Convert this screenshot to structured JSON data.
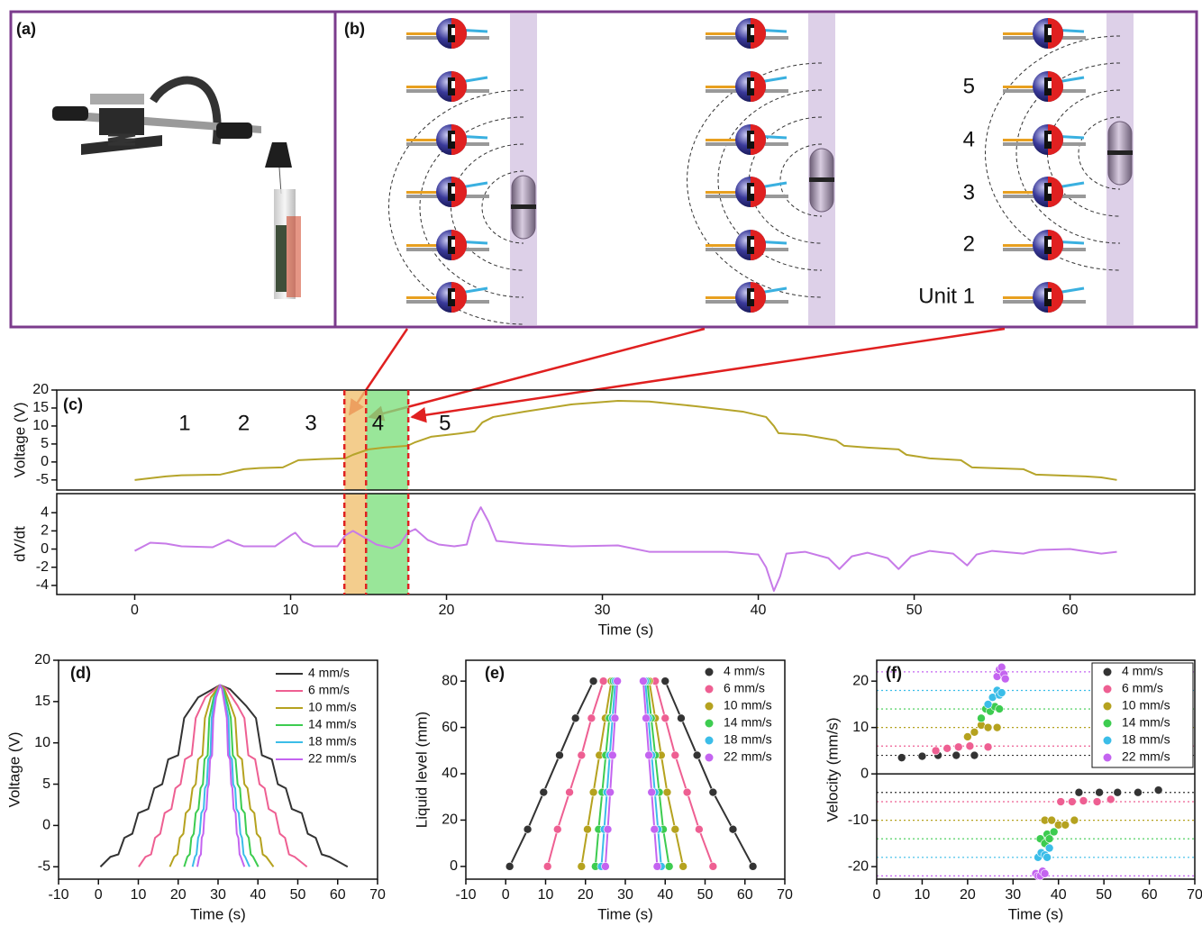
{
  "panels": {
    "a": {
      "label": "(a)"
    },
    "b": {
      "label": "(b)",
      "units": [
        "Unit 1",
        "2",
        "3",
        "4",
        "5"
      ]
    }
  },
  "chart_data": [
    {
      "type": "line",
      "label": "(c)",
      "ylabel": "Voltage (V)",
      "color": "#b5a42a",
      "xlim": [
        -5,
        68
      ],
      "ylim": [
        -7.8,
        20
      ],
      "yticks": [
        -5,
        0,
        5,
        10,
        15,
        20
      ],
      "x": [
        0,
        1,
        2,
        3,
        5.5,
        6,
        7,
        8,
        9.5,
        10,
        10.5,
        12,
        13.5,
        14,
        15,
        16,
        17.5,
        18,
        19,
        21,
        21.8,
        22.3,
        23,
        25,
        28,
        31,
        33,
        36,
        39,
        40.5,
        41,
        41.3,
        43,
        45,
        45.5,
        47,
        49,
        49.5,
        51,
        53,
        53.7,
        57,
        57.8,
        61,
        62,
        63
      ],
      "values": [
        -5,
        -4.5,
        -4,
        -3.7,
        -3.5,
        -3,
        -2,
        -1.7,
        -1.5,
        -0.5,
        0.5,
        0.8,
        1,
        2,
        3.5,
        4,
        4.5,
        5.5,
        7,
        8,
        8.5,
        11,
        12.5,
        14,
        16,
        17,
        16.8,
        15.5,
        14,
        12.5,
        10,
        8,
        7.5,
        6,
        4.5,
        4,
        3.5,
        2,
        1,
        0.5,
        -1.5,
        -2,
        -3.5,
        -4,
        -4.3,
        -5
      ],
      "highlights": [
        {
          "from": 13.45,
          "to": 14.84,
          "color": "#f0c070"
        },
        {
          "from": 14.84,
          "to": 17.55,
          "color": "#7fe07f"
        }
      ],
      "boundaries": [
        13.45,
        14.84,
        17.55
      ],
      "annotations": [
        {
          "text": "1",
          "x": 3.2,
          "y": 10.5
        },
        {
          "text": "2",
          "x": 7.0,
          "y": 10.5
        },
        {
          "text": "3",
          "x": 11.3,
          "y": 10.5
        },
        {
          "text": "4",
          "x": 15.6,
          "y": 10.5
        },
        {
          "text": "5",
          "x": 19.9,
          "y": 10.5
        }
      ]
    },
    {
      "type": "line",
      "ylabel": "dV/dt",
      "xlabel": "Time (s)",
      "color": "#c77be8",
      "xlim": [
        -5,
        68
      ],
      "xticks": [
        0,
        10,
        20,
        30,
        40,
        50,
        60
      ],
      "ylim": [
        -5,
        6.1
      ],
      "yticks": [
        -4,
        -2,
        0,
        2,
        4
      ],
      "x": [
        0,
        1,
        2,
        3,
        5,
        5.5,
        6,
        6.5,
        7,
        9,
        10,
        10.3,
        10.8,
        11.5,
        13,
        13.5,
        14,
        14.5,
        15.5,
        16.5,
        17,
        17.5,
        18,
        18.8,
        19.5,
        20.5,
        21.3,
        21.7,
        22.2,
        22.7,
        23.2,
        25,
        28,
        31,
        33,
        38,
        40,
        40.5,
        41,
        41.4,
        41.8,
        43,
        44.5,
        45.2,
        46,
        47,
        48.3,
        49,
        49.8,
        51,
        52.5,
        53.4,
        54,
        55,
        57,
        58,
        60,
        62,
        63
      ],
      "values": [
        -0.2,
        0.7,
        0.6,
        0.3,
        0.2,
        0.6,
        1,
        0.6,
        0.3,
        0.3,
        1.5,
        1.8,
        0.8,
        0.3,
        0.3,
        1.5,
        2,
        1.5,
        0.5,
        0.1,
        0.5,
        1.8,
        2.2,
        1,
        0.5,
        0.3,
        0.5,
        3,
        4.6,
        3,
        0.9,
        0.6,
        0.3,
        0.4,
        -0.3,
        -0.3,
        -0.6,
        -2,
        -4.6,
        -3,
        -0.5,
        -0.3,
        -1,
        -2.2,
        -0.8,
        -0.4,
        -1,
        -2.2,
        -0.8,
        -0.2,
        -0.5,
        -1.8,
        -0.6,
        -0.2,
        -0.5,
        -0.1,
        0,
        -0.5,
        -0.3
      ],
      "highlights": [
        {
          "from": 13.45,
          "to": 14.84,
          "color": "#f0c070"
        },
        {
          "from": 14.84,
          "to": 17.55,
          "color": "#7fe07f"
        }
      ],
      "boundaries": [
        13.45,
        14.84,
        17.55
      ]
    },
    {
      "type": "line",
      "label": "(d)",
      "xlabel": "Time (s)",
      "ylabel": "Voltage (V)",
      "legend": "upper right",
      "xlim": [
        -10,
        70
      ],
      "xticks": [
        -10,
        0,
        10,
        20,
        30,
        40,
        50,
        60,
        70
      ],
      "ylim": [
        -6.5,
        20
      ],
      "yticks": [
        -5,
        0,
        5,
        10,
        15,
        20
      ],
      "series": [
        {
          "name": "4 mm/s",
          "color": "#333333",
          "x": [
            0.5,
            3,
            5,
            6.5,
            8.5,
            10,
            12.5,
            14,
            16,
            17.5,
            20,
            21.5,
            25,
            30.5,
            33,
            37,
            39.5,
            41,
            43.5,
            45,
            47,
            48.5,
            51,
            52.5,
            54.5,
            56,
            58,
            62.5
          ],
          "values": [
            -5,
            -3.8,
            -3.5,
            -1.5,
            -1,
            1.5,
            2,
            4.5,
            5,
            8,
            8.5,
            13,
            15.5,
            17,
            16.5,
            14.5,
            13,
            8.5,
            8,
            5,
            4.5,
            2,
            1.5,
            -1,
            -1.5,
            -3.5,
            -3.8,
            -5
          ]
        },
        {
          "name": "6 mm/s",
          "color": "#ee5f92",
          "x": [
            10.1,
            11.8,
            13.2,
            14.2,
            15.5,
            16.6,
            18.3,
            19.3,
            20.6,
            21.7,
            23.4,
            24.4,
            26.8,
            30.5,
            32.2,
            34.9,
            36.6,
            37.6,
            39.3,
            40.4,
            41.7,
            42.7,
            44.4,
            45.5,
            46.8,
            47.8,
            49.2,
            52.3
          ],
          "values": [
            -5,
            -3.8,
            -3.5,
            -1.5,
            -1,
            1.5,
            2,
            4.5,
            5,
            8,
            8.5,
            13,
            15.5,
            17,
            16.5,
            14.5,
            13,
            8.5,
            8,
            5,
            4.5,
            2,
            1.5,
            -1,
            -1.5,
            -3.5,
            -3.8,
            -5
          ]
        },
        {
          "name": "10 mm/s",
          "color": "#b5a21f",
          "x": [
            17.9,
            19.0,
            19.8,
            20.4,
            21.3,
            21.9,
            22.9,
            23.6,
            24.4,
            25.0,
            26.1,
            26.7,
            28.2,
            30.5,
            31.6,
            33.2,
            34.3,
            34.9,
            36.0,
            36.6,
            37.4,
            38.1,
            39.1,
            39.7,
            40.6,
            41.2,
            42.1,
            43.9
          ],
          "values": [
            -5,
            -3.8,
            -3.5,
            -1.5,
            -1,
            1.5,
            2,
            4.5,
            5,
            8,
            8.5,
            13,
            15.5,
            17,
            16.5,
            14.5,
            13,
            8.5,
            8,
            5,
            4.5,
            2,
            1.5,
            -1,
            -1.5,
            -3.5,
            -3.8,
            -5
          ]
        },
        {
          "name": "14 mm/s",
          "color": "#3dcc50",
          "x": [
            21.5,
            22.3,
            22.9,
            23.3,
            23.9,
            24.4,
            25.1,
            25.6,
            26.2,
            26.6,
            27.4,
            27.8,
            28.9,
            30.5,
            31.3,
            32.5,
            33.2,
            33.7,
            34.4,
            34.9,
            35.5,
            35.9,
            36.7,
            37.1,
            37.7,
            38.2,
            38.8,
            40.1
          ],
          "values": [
            -5,
            -3.8,
            -3.5,
            -1.5,
            -1,
            1.5,
            2,
            4.5,
            5,
            8,
            8.5,
            13,
            15.5,
            17,
            16.5,
            14.5,
            13,
            8.5,
            8,
            5,
            4.5,
            2,
            1.5,
            -1,
            -1.5,
            -3.5,
            -3.8,
            -5
          ]
        },
        {
          "name": "18 mm/s",
          "color": "#3bbde8",
          "x": [
            23.6,
            24.2,
            24.6,
            25.0,
            25.4,
            25.8,
            26.4,
            26.7,
            27.2,
            27.5,
            28.1,
            28.4,
            29.2,
            30.5,
            31.1,
            32.0,
            32.6,
            32.9,
            33.5,
            33.8,
            34.3,
            34.6,
            35.2,
            35.6,
            36.0,
            36.4,
            36.8,
            37.9
          ],
          "values": [
            -5,
            -3.8,
            -3.5,
            -1.5,
            -1,
            1.5,
            2,
            4.5,
            5,
            8,
            8.5,
            13,
            15.5,
            17,
            16.5,
            14.5,
            13,
            8.5,
            8,
            5,
            4.5,
            2,
            1.5,
            -1,
            -1.5,
            -3.5,
            -3.8,
            -5
          ]
        },
        {
          "name": "22 mm/s",
          "color": "#c464f0",
          "x": [
            24.8,
            25.3,
            25.7,
            25.9,
            26.3,
            26.6,
            27.1,
            27.4,
            27.7,
            28.0,
            28.5,
            28.8,
            29.5,
            30.5,
            31.0,
            31.7,
            32.2,
            32.5,
            33.0,
            33.3,
            33.6,
            33.9,
            34.4,
            34.7,
            35.1,
            35.4,
            35.7,
            36.6
          ],
          "values": [
            -5,
            -3.8,
            -3.5,
            -1.5,
            -1,
            1.5,
            2,
            4.5,
            5,
            8,
            8.5,
            13,
            15.5,
            17,
            16.5,
            14.5,
            13,
            8.5,
            8,
            5,
            4.5,
            2,
            1.5,
            -1,
            -1.5,
            -3.5,
            -3.8,
            -5
          ]
        }
      ]
    },
    {
      "type": "line",
      "show_markers": true,
      "label": "(e)",
      "xlabel": "Time (s)",
      "ylabel": "Liquid level (mm)",
      "legend": "upper right",
      "xlim": [
        -10,
        70
      ],
      "xticks": [
        -10,
        0,
        10,
        20,
        30,
        40,
        50,
        60,
        70
      ],
      "ylim": [
        -5.5,
        89
      ],
      "yticks": [
        0,
        20,
        40,
        60,
        80
      ],
      "series": [
        {
          "name": "4 mm/s",
          "color": "#333333",
          "x": [
            1,
            5.5,
            9.5,
            13.5,
            17.5,
            22,
            null,
            40,
            44,
            48,
            52,
            57,
            62
          ],
          "values": [
            0,
            16,
            32,
            48,
            64,
            80,
            null,
            80,
            64,
            48,
            32,
            16,
            0
          ]
        },
        {
          "name": "6 mm/s",
          "color": "#ee5f92",
          "x": [
            10.5,
            13,
            16,
            19,
            21.5,
            24.5,
            null,
            37.5,
            40,
            42.5,
            45.5,
            48.5,
            52
          ],
          "values": [
            0,
            16,
            32,
            48,
            64,
            80,
            null,
            80,
            64,
            48,
            32,
            16,
            0
          ]
        },
        {
          "name": "10 mm/s",
          "color": "#b5a21f",
          "x": [
            19,
            20.5,
            22,
            23.5,
            25,
            26.5,
            null,
            36,
            37.5,
            39,
            40.5,
            42.5,
            44.5
          ],
          "values": [
            0,
            16,
            32,
            48,
            64,
            80,
            null,
            80,
            64,
            48,
            32,
            16,
            0
          ]
        },
        {
          "name": "14 mm/s",
          "color": "#3dcc50",
          "x": [
            22.5,
            23.3,
            24.2,
            25.1,
            26,
            27,
            null,
            35.5,
            36.5,
            37.5,
            38.5,
            39.5,
            41
          ],
          "values": [
            0,
            16,
            32,
            48,
            64,
            80,
            null,
            80,
            64,
            48,
            32,
            16,
            0
          ]
        },
        {
          "name": "18 mm/s",
          "color": "#3bbde8",
          "x": [
            24,
            24.7,
            25.4,
            26.1,
            26.8,
            27.5,
            null,
            35,
            35.8,
            36.6,
            37.4,
            38.2,
            39
          ],
          "values": [
            0,
            16,
            32,
            48,
            64,
            80,
            null,
            80,
            64,
            48,
            32,
            16,
            0
          ]
        },
        {
          "name": "22 mm/s",
          "color": "#c464f0",
          "x": [
            25,
            25.6,
            26.2,
            26.8,
            27.4,
            28,
            null,
            34.5,
            35.2,
            35.9,
            36.6,
            37.3,
            38
          ],
          "values": [
            0,
            16,
            32,
            48,
            64,
            80,
            null,
            80,
            64,
            48,
            32,
            16,
            0
          ]
        }
      ]
    },
    {
      "type": "scatter",
      "label": "(f)",
      "xlabel": "Time (s)",
      "ylabel": "Velocity (mm/s)",
      "legend": "upper right",
      "legend_frame": true,
      "zero_line": true,
      "xlim": [
        0,
        70
      ],
      "xticks": [
        0,
        10,
        20,
        30,
        40,
        50,
        60,
        70
      ],
      "ylim": [
        -22.7,
        24.5
      ],
      "yticks": [
        -20,
        -10,
        0,
        10,
        20
      ],
      "series": [
        {
          "name": "4 mm/s",
          "color": "#333333",
          "ref": [
            4,
            -4
          ],
          "x": [
            5.5,
            10,
            13.5,
            17.5,
            21.5,
            44.5,
            49,
            53,
            57.5,
            62
          ],
          "values": [
            3.5,
            3.8,
            4,
            4,
            4,
            -4,
            -4,
            -4,
            -4,
            -3.5
          ]
        },
        {
          "name": "6 mm/s",
          "color": "#ee5f92",
          "ref": [
            6,
            -6
          ],
          "x": [
            13,
            15.5,
            18,
            20.5,
            24.5,
            40.5,
            43,
            45.5,
            48.5,
            51.5
          ],
          "values": [
            5,
            5.5,
            5.8,
            6,
            5.8,
            -6,
            -6,
            -5.8,
            -6,
            -5.5
          ]
        },
        {
          "name": "10 mm/s",
          "color": "#b5a21f",
          "ref": [
            10,
            -10
          ],
          "x": [
            20,
            21.5,
            23,
            24.5,
            26.5,
            37,
            38.5,
            40,
            41.5,
            43.5
          ],
          "values": [
            8,
            9,
            10.5,
            10,
            10,
            -10,
            -10,
            -11,
            -11,
            -10
          ]
        },
        {
          "name": "14 mm/s",
          "color": "#3dcc50",
          "ref": [
            14,
            -14
          ],
          "x": [
            23,
            24,
            25,
            26,
            27,
            36,
            37,
            37.5,
            38,
            39
          ],
          "values": [
            12,
            14,
            13.5,
            14.5,
            14,
            -14,
            -15,
            -13,
            -14,
            -12.5
          ]
        },
        {
          "name": "18 mm/s",
          "color": "#3bbde8",
          "ref": [
            18,
            -18
          ],
          "x": [
            24.5,
            25.5,
            26.5,
            27,
            27.5,
            35.5,
            36.2,
            37,
            37.5,
            38
          ],
          "values": [
            15,
            16.5,
            18,
            17,
            17.5,
            -18,
            -17,
            -17.5,
            -18,
            -16
          ]
        },
        {
          "name": "22 mm/s",
          "color": "#c464f0",
          "ref": [
            22,
            -22
          ],
          "x": [
            26.5,
            27,
            27.5,
            28,
            28.3,
            35,
            35.5,
            36,
            36.5,
            37
          ],
          "values": [
            21,
            22.5,
            23,
            21.5,
            20.5,
            -21.5,
            -22,
            -22,
            -21,
            -21.5
          ]
        }
      ]
    }
  ]
}
